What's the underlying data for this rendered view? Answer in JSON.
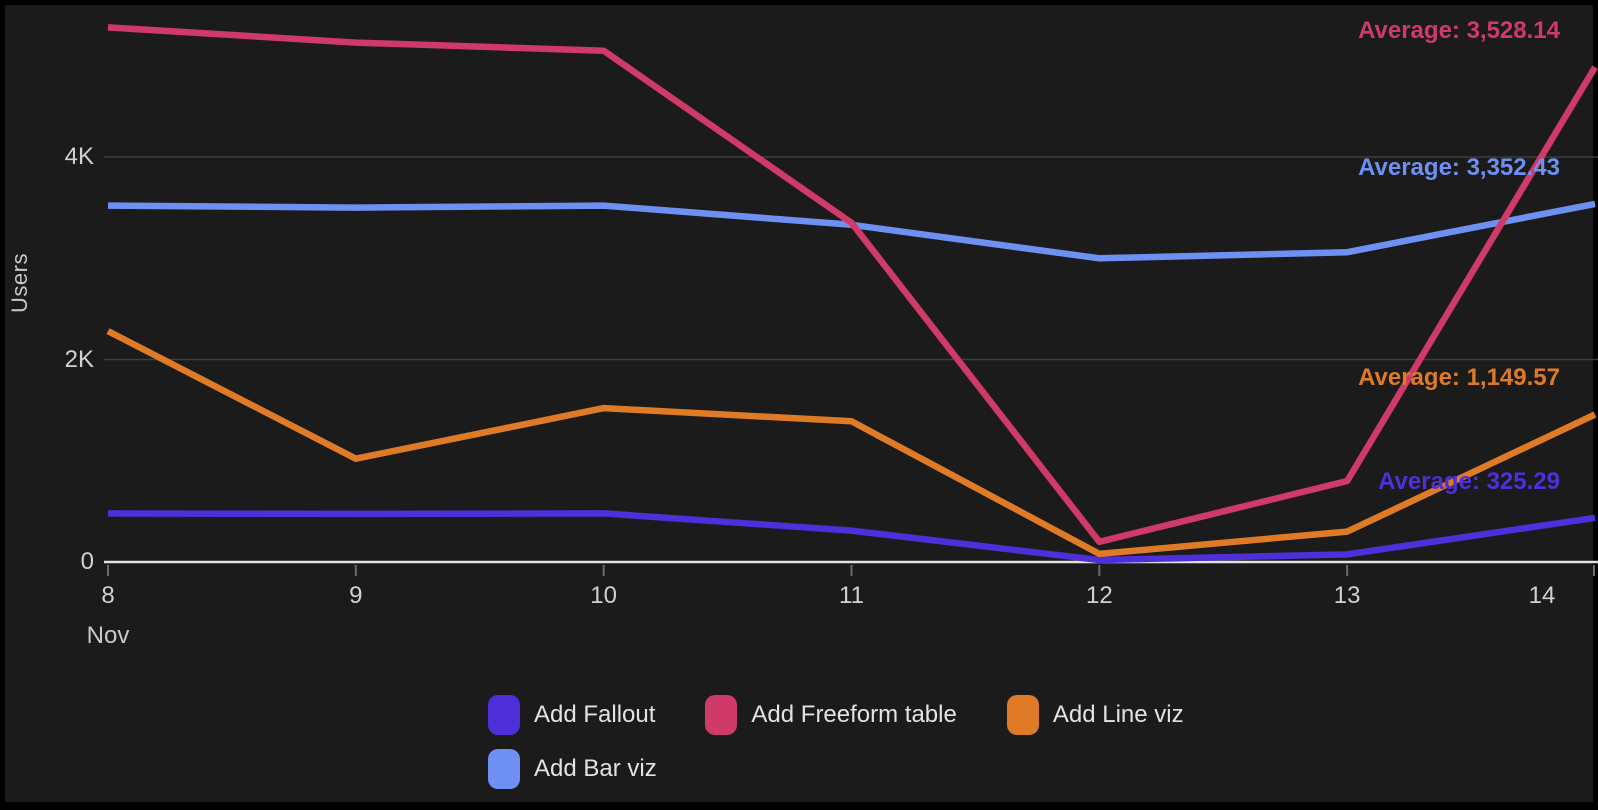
{
  "chart_data": {
    "type": "line",
    "title": "",
    "ylabel": "Users",
    "grid": "horizontal",
    "legend_position": "bottom",
    "ylim": [
      0,
      5500
    ],
    "x": {
      "month_label": "Nov",
      "categories": [
        "8",
        "9",
        "10",
        "11",
        "12",
        "13",
        "14"
      ]
    },
    "yticks": [
      {
        "label": "0",
        "value": 0
      },
      {
        "label": "2K",
        "value": 2000
      },
      {
        "label": "4K",
        "value": 4000
      }
    ],
    "series": [
      {
        "name": "Add Fallout",
        "color": "#4E2FD9",
        "values": [
          480,
          475,
          480,
          310,
          20,
          75,
          437
        ],
        "average": 325.29,
        "average_label": "Average: 325.29"
      },
      {
        "name": "Add Freeform table",
        "color": "#D03A68",
        "values": [
          5280,
          5130,
          5050,
          3350,
          200,
          800,
          4887
        ],
        "average": 3528.14,
        "average_label": "Average: 3,528.14"
      },
      {
        "name": "Add Line viz",
        "color": "#DF7B27",
        "values": [
          2280,
          1020,
          1520,
          1390,
          80,
          300,
          1457
        ],
        "average": 1149.57,
        "average_label": "Average: 1,149.57"
      },
      {
        "name": "Add Bar viz",
        "color": "#6E90F2",
        "values": [
          3520,
          3500,
          3520,
          3330,
          3000,
          3060,
          3537
        ],
        "average": 3352.43,
        "average_label": "Average: 3,352.43"
      }
    ]
  },
  "colors": {
    "background": "#1B1B1B",
    "frame": "#000000",
    "axis_line": "#E3E3E3",
    "gridline": "#3D3D3D",
    "tick_mark": "#6A6A6A",
    "axis_text": "#D2D2D2",
    "legend_text": "#E3E3E3"
  }
}
